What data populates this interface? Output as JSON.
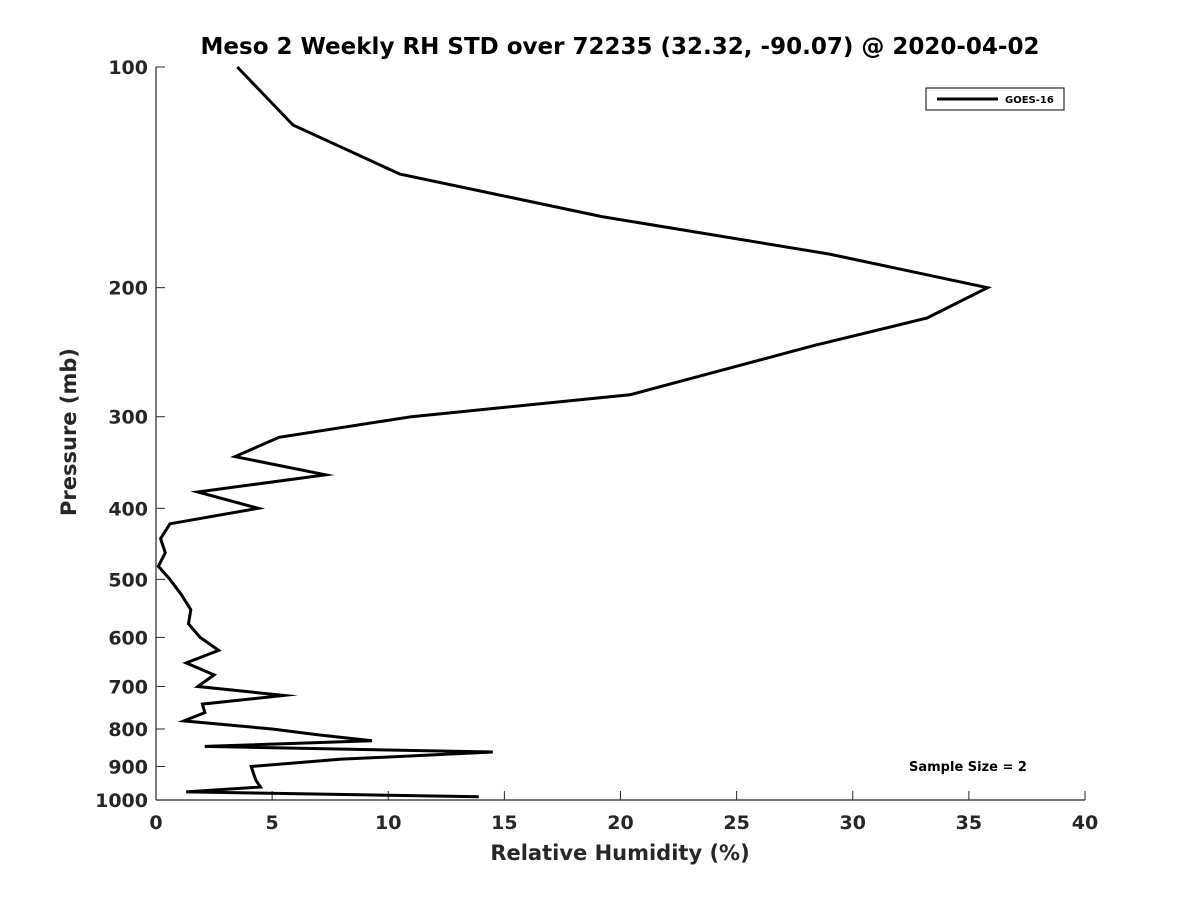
{
  "chart_data": {
    "type": "line",
    "title": "Meso 2 Weekly RH STD over 72235 (32.32, -90.07) @ 2020-04-02",
    "xlabel": "Relative Humidity (%)",
    "ylabel": "Pressure (mb)",
    "xlim": [
      0,
      40
    ],
    "ylim": [
      100,
      1000
    ],
    "y_scale": "log",
    "y_reversed": true,
    "xticks": [
      0,
      5,
      10,
      15,
      20,
      25,
      30,
      35,
      40
    ],
    "yticks": [
      100,
      200,
      300,
      400,
      500,
      600,
      700,
      800,
      900,
      1000
    ],
    "legend": {
      "position": "top-right",
      "entries": [
        "GOES-16"
      ]
    },
    "annotation": "Sample Size = 2",
    "series": [
      {
        "name": "GOES-16",
        "color": "#000000",
        "points": [
          [
            3.5,
            100
          ],
          [
            5.9,
            120
          ],
          [
            10.5,
            140
          ],
          [
            19.2,
            160
          ],
          [
            29.0,
            180
          ],
          [
            35.8,
            200
          ],
          [
            33.2,
            220
          ],
          [
            28.3,
            240
          ],
          [
            20.4,
            280
          ],
          [
            11.0,
            300
          ],
          [
            5.3,
            320
          ],
          [
            3.4,
            340
          ],
          [
            7.3,
            360
          ],
          [
            1.8,
            380
          ],
          [
            4.4,
            400
          ],
          [
            0.6,
            420
          ],
          [
            0.2,
            440
          ],
          [
            0.4,
            460
          ],
          [
            0.1,
            480
          ],
          [
            0.6,
            500
          ],
          [
            1.1,
            525
          ],
          [
            1.5,
            550
          ],
          [
            1.4,
            575
          ],
          [
            1.9,
            600
          ],
          [
            2.7,
            625
          ],
          [
            1.3,
            650
          ],
          [
            2.5,
            675
          ],
          [
            1.8,
            700
          ],
          [
            5.5,
            720
          ],
          [
            2.0,
            740
          ],
          [
            2.1,
            760
          ],
          [
            1.2,
            780
          ],
          [
            5.0,
            800
          ],
          [
            7.0,
            815
          ],
          [
            9.3,
            830
          ],
          [
            2.1,
            845
          ],
          [
            14.5,
            860
          ],
          [
            7.9,
            880
          ],
          [
            4.1,
            900
          ],
          [
            4.2,
            920
          ],
          [
            4.3,
            940
          ],
          [
            4.5,
            960
          ],
          [
            1.3,
            975
          ],
          [
            13.9,
            990
          ]
        ]
      }
    ]
  }
}
